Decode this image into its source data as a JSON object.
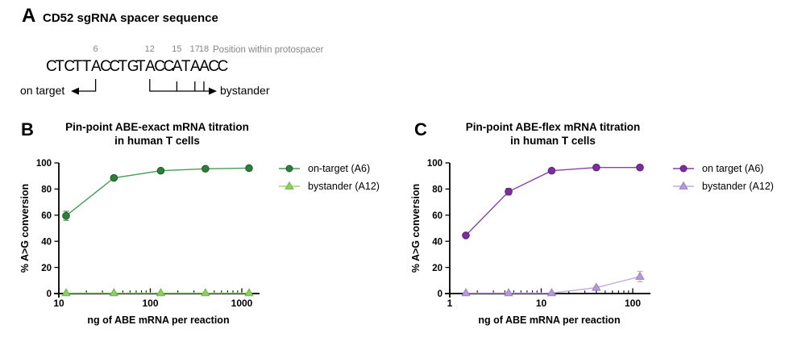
{
  "panel_a": {
    "label": "A",
    "title": "CD52 sgRNA spacer sequence",
    "sequence": "CTCTTACCTGTACCATAACC",
    "positions": [
      6,
      12,
      15,
      17,
      18
    ],
    "position_note": "Position within protospacer",
    "on_target_label": "on target",
    "on_target_position": 6,
    "bystander_label": "bystander",
    "bystander_positions": [
      12,
      15,
      17,
      18
    ]
  },
  "chart_data": [
    {
      "panel": "B",
      "type": "line",
      "title_line1": "Pin-point ABE-exact mRNA titration",
      "title_line2": "in human T cells",
      "xlabel": "ng of ABE mRNA per reaction",
      "ylabel": "% A>G conversion",
      "xscale": "log",
      "xlim": [
        10,
        1500
      ],
      "ylim": [
        0,
        100
      ],
      "xticks": [
        10,
        100,
        1000
      ],
      "yticks": [
        0,
        20,
        40,
        60,
        80,
        100
      ],
      "grid": false,
      "legend_position": "right",
      "series": [
        {
          "name": "on-target (A6)",
          "marker": "circle",
          "marker_color": "#2e7d3b",
          "marker_edge": "#225c2c",
          "line_color": "#4a9a58",
          "x": [
            12,
            40,
            130,
            400,
            1200
          ],
          "y": [
            59.5,
            88.5,
            94,
            95.5,
            96
          ],
          "yerr": [
            3.5,
            1,
            0.5,
            0.5,
            0.5
          ]
        },
        {
          "name": "bystander (A12)",
          "marker": "triangle",
          "marker_color": "#8ecf63",
          "marker_edge": "#74b44c",
          "line_color": "#9bd478",
          "x": [
            12,
            40,
            130,
            400,
            1200
          ],
          "y": [
            0.4,
            0.4,
            0.4,
            0.4,
            0.4
          ],
          "yerr": [
            0,
            0,
            0,
            0,
            0
          ]
        }
      ]
    },
    {
      "panel": "C",
      "type": "line",
      "title_line1": "Pin-point ABE-flex mRNA titration",
      "title_line2": "in human T cells",
      "xlabel": "ng of ABE mRNA per reaction",
      "ylabel": "% A>G conversion",
      "xscale": "log",
      "xlim": [
        1,
        150
      ],
      "ylim": [
        0,
        100
      ],
      "xticks": [
        1,
        10,
        100
      ],
      "yticks": [
        0,
        20,
        40,
        60,
        80,
        100
      ],
      "grid": false,
      "legend_position": "right",
      "series": [
        {
          "name": "on target (A6)",
          "marker": "circle",
          "marker_color": "#7b2d9b",
          "marker_edge": "#5e2078",
          "line_color": "#8a41aa",
          "x": [
            1.5,
            4.4,
            13,
            40,
            120
          ],
          "y": [
            44.5,
            78,
            94,
            96.5,
            96.5
          ],
          "yerr": [
            0.5,
            2.5,
            0.5,
            0.5,
            0.5
          ]
        },
        {
          "name": "bystander (A12)",
          "marker": "triangle",
          "marker_color": "#b59cd6",
          "marker_edge": "#9a7fc0",
          "line_color": "#c0abdd",
          "x": [
            1.5,
            4.4,
            13,
            40,
            120
          ],
          "y": [
            0.4,
            0.4,
            0.4,
            4.5,
            13
          ],
          "yerr": [
            0,
            0,
            0,
            1,
            4
          ]
        }
      ]
    }
  ]
}
